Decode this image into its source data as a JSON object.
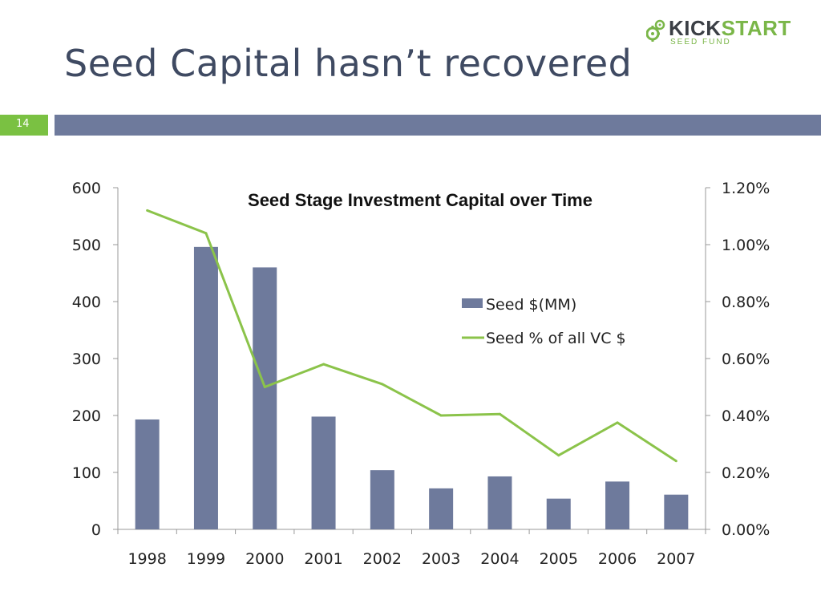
{
  "slide": {
    "title": "Seed Capital hasn’t recovered",
    "number": "14"
  },
  "logo": {
    "word_dark": "KICK",
    "word_light": "START",
    "tagline": "SEED FUND",
    "icon": "gear-icon",
    "colors": {
      "dark": "#3b3f45",
      "green": "#7ab648"
    }
  },
  "colors": {
    "bar": "#6e7a9c",
    "line": "#8bc34a",
    "slide_number_bg": "#7ac142",
    "title_bar": "#6e7a9c"
  },
  "chart_data": {
    "type": "bar",
    "title": "Seed Stage Investment Capital over Time",
    "categories": [
      "1998",
      "1999",
      "2000",
      "2001",
      "2002",
      "2003",
      "2004",
      "2005",
      "2006",
      "2007"
    ],
    "series": [
      {
        "name": "Seed $(MM)",
        "type": "bar",
        "axis": "left",
        "values": [
          193,
          496,
          460,
          198,
          104,
          72,
          93,
          54,
          84,
          61
        ]
      },
      {
        "name": "Seed % of all VC $",
        "type": "line",
        "axis": "right",
        "values": [
          1.12,
          1.04,
          0.5,
          0.58,
          0.51,
          0.4,
          0.405,
          0.26,
          0.375,
          0.24
        ]
      }
    ],
    "y_left": {
      "ylim": [
        0,
        600
      ],
      "ticks": [
        "0",
        "100",
        "200",
        "300",
        "400",
        "500",
        "600"
      ]
    },
    "y_right": {
      "ylim": [
        0,
        1.2
      ],
      "ticks": [
        "0.00%",
        "0.20%",
        "0.40%",
        "0.60%",
        "0.80%",
        "1.00%",
        "1.20%"
      ]
    },
    "grid": false,
    "legend_position": "center-right"
  }
}
